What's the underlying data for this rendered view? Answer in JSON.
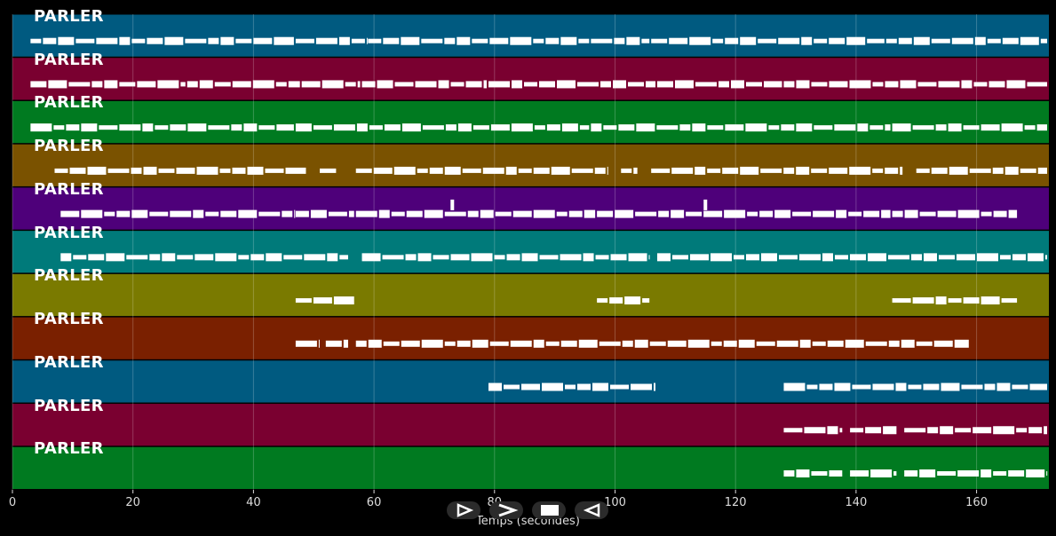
{
  "chart_data": {
    "type": "event-timeline",
    "xlabel": "Temps (secondes)",
    "xlim": [
      0,
      172
    ],
    "x_ticks": [
      0,
      20,
      40,
      60,
      80,
      100,
      120,
      140,
      160
    ],
    "grid": true,
    "tracks": [
      {
        "label": "PARLER",
        "color": "#005a80",
        "segments": [
          [
            3,
            47
          ],
          [
            47,
            59
          ],
          [
            59,
            96
          ],
          [
            96,
            106
          ],
          [
            106,
            145
          ],
          [
            145,
            172
          ]
        ]
      },
      {
        "label": "PARLER",
        "color": "#7a0030",
        "segments": [
          [
            3,
            29
          ],
          [
            29,
            48
          ],
          [
            48,
            58
          ],
          [
            58,
            79
          ],
          [
            79,
            107
          ],
          [
            107,
            128
          ],
          [
            128,
            172
          ]
        ]
      },
      {
        "label": "PARLER",
        "color": "#007a20",
        "segments": [
          [
            3,
            47
          ],
          [
            47,
            96
          ],
          [
            96,
            146
          ],
          [
            146,
            172
          ]
        ]
      },
      {
        "label": "PARLER",
        "color": "#7a5200",
        "segments": [
          [
            7,
            49
          ],
          [
            51,
            54
          ],
          [
            57,
            99
          ],
          [
            101,
            104
          ],
          [
            106,
            148
          ],
          [
            150,
            172
          ]
        ]
      },
      {
        "label": "PARLER",
        "color": "#4e007a",
        "segments": [
          [
            8,
            47
          ],
          [
            47,
            57
          ],
          [
            57,
            97
          ],
          [
            97,
            146
          ],
          [
            146,
            167
          ]
        ],
        "markers": [
          73,
          115
        ]
      },
      {
        "label": "PARLER",
        "color": "#007a7a",
        "segments": [
          [
            8,
            56
          ],
          [
            58,
            106
          ],
          [
            107,
            172
          ]
        ]
      },
      {
        "label": "PARLER",
        "color": "#7a7a00",
        "segments": [
          [
            47,
            57
          ],
          [
            97,
            106
          ],
          [
            146,
            167
          ]
        ]
      },
      {
        "label": "PARLER",
        "color": "#7a2000",
        "segments": [
          [
            47,
            51
          ],
          [
            52,
            56
          ],
          [
            57,
            159
          ]
        ]
      },
      {
        "label": "PARLER",
        "color": "#005a80",
        "segments": [
          [
            79,
            107
          ],
          [
            128,
            172
          ]
        ]
      },
      {
        "label": "PARLER",
        "color": "#7a0030",
        "segments": [
          [
            128,
            138
          ],
          [
            139,
            147
          ],
          [
            148,
            172
          ]
        ]
      },
      {
        "label": "PARLER",
        "color": "#007a20",
        "segments": [
          [
            128,
            138
          ],
          [
            139,
            147
          ],
          [
            148,
            172
          ]
        ]
      }
    ]
  },
  "controls": [
    {
      "name": "play-forward-icon"
    },
    {
      "name": "fast-forward-icon"
    },
    {
      "name": "stop-icon"
    },
    {
      "name": "play-backward-icon"
    }
  ]
}
